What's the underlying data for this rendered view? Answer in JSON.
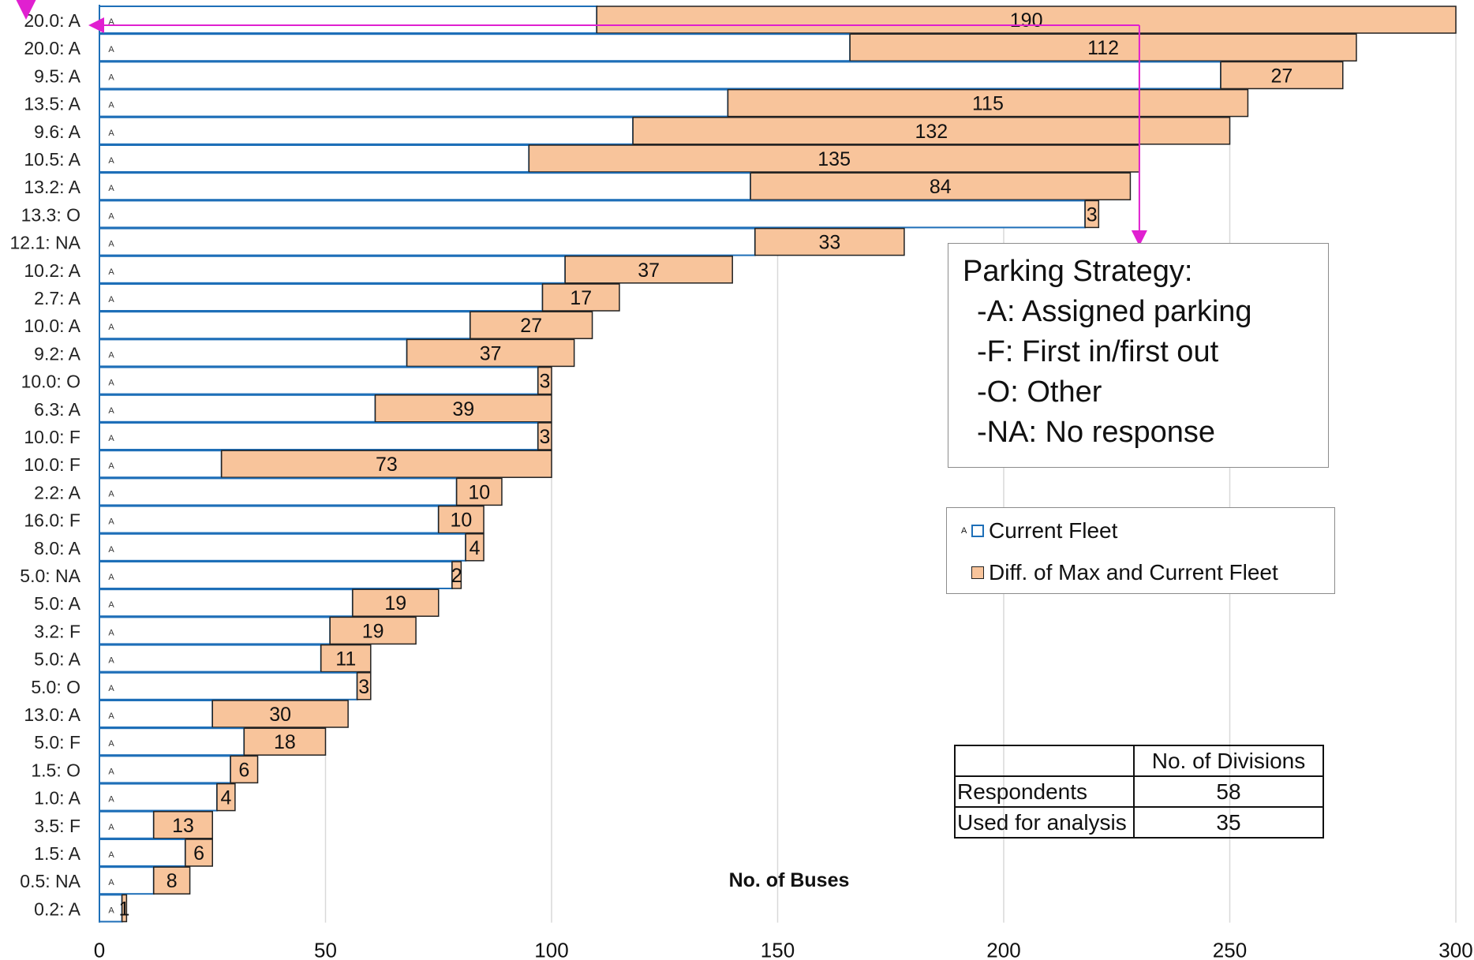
{
  "chart_data": {
    "type": "bar",
    "orientation": "horizontal",
    "stacked": true,
    "categories": [
      "20.0: A",
      "20.0: A",
      "9.5: A",
      "13.5: A",
      "9.6: A",
      "10.5: A",
      "13.2: A",
      "13.3: O",
      "12.1: NA",
      "10.2: A",
      "2.7: A",
      "10.0: A",
      "9.2: A",
      "10.0: O",
      "6.3: A",
      "10.0: F",
      "10.0: F",
      "2.2: A",
      "16.0: F",
      "8.0: A",
      "5.0: NA",
      "5.0: A",
      "3.2: F",
      "5.0: A",
      "5.0: O",
      "13.0: A",
      "5.0: F",
      "1.5: O",
      "1.0: A",
      "3.5: F",
      "1.5: A",
      "0.5: NA",
      "0.2: A"
    ],
    "series": [
      {
        "name": "Current Fleet",
        "values": [
          110,
          166,
          248,
          139,
          118,
          95,
          144,
          218,
          145,
          103,
          98,
          82,
          68,
          97,
          61,
          97,
          27,
          79,
          75,
          81,
          78,
          56,
          51,
          49,
          57,
          25,
          32,
          29,
          26,
          12,
          19,
          12,
          5
        ]
      },
      {
        "name": "Diff. of Max and Current Fleet",
        "values": [
          190,
          112,
          27,
          115,
          132,
          135,
          84,
          3,
          33,
          37,
          17,
          27,
          37,
          3,
          39,
          3,
          73,
          10,
          10,
          4,
          2,
          19,
          19,
          11,
          3,
          30,
          18,
          6,
          4,
          13,
          6,
          8,
          1
        ]
      }
    ],
    "point_marker_label": "A",
    "xlabel": "No. of Buses",
    "xlim": [
      0,
      300
    ],
    "xticks": [
      0,
      50,
      100,
      150,
      200,
      250,
      300
    ],
    "grid": "vertical",
    "colors": {
      "current_border": "#1e6fb8",
      "diff_fill": "#f8c49b",
      "diff_border": "#222222",
      "arrow": "#e020d0",
      "grid": "#d9d9d9"
    }
  },
  "strategy_legend": {
    "title": "Parking Strategy:",
    "items": [
      "-A: Assigned parking",
      "-F: First in/first out",
      "-O: Other",
      "-NA: No response"
    ]
  },
  "series_legend": {
    "marker": "A",
    "current": "Current Fleet",
    "diff": "Diff. of Max and Current Fleet"
  },
  "divisions_table": {
    "header": "No. of Divisions",
    "rows": [
      {
        "label": "Respondents",
        "value": "58"
      },
      {
        "label": "Used for analysis",
        "value": "35"
      }
    ]
  }
}
